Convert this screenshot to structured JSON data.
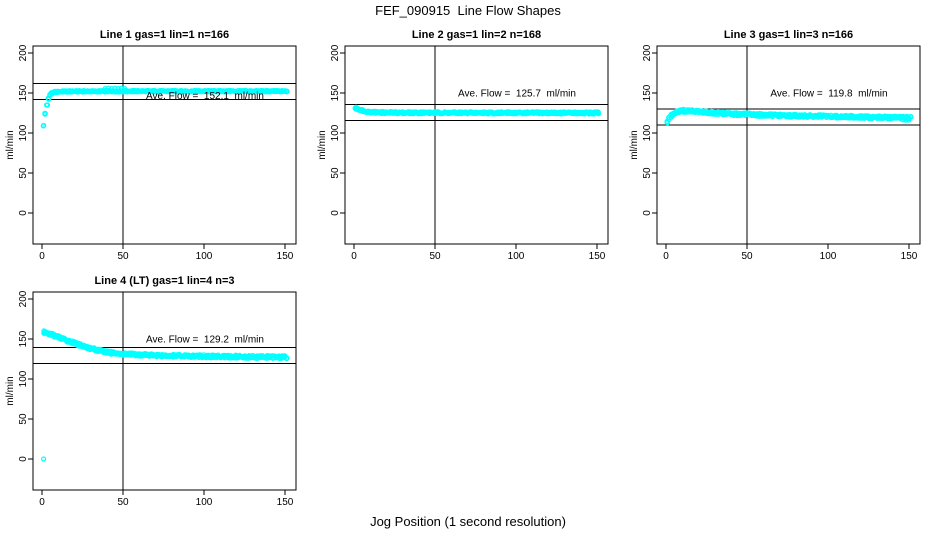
{
  "page": {
    "title": "FEF_090915  Line Flow Shapes",
    "xlabel": "Jog Position (1 second resolution)"
  },
  "colors": {
    "points": "#00FFFF",
    "axis": "#000000",
    "background": "#FFFFFF"
  },
  "chart_data": [
    {
      "type": "scatter",
      "title": "Line 1 gas=1 lin=1 n=166",
      "gas": 1,
      "lin": 1,
      "n": 166,
      "ave_flow": 152.1,
      "annotation": "Ave. Flow =  152.1  ml/min",
      "ylabel": "ml/min",
      "x_ticks": [
        0,
        50,
        100,
        150
      ],
      "y_ticks": [
        0,
        50,
        100,
        150,
        200
      ],
      "xlim": [
        -5,
        157
      ],
      "ylim": [
        -39,
        209
      ],
      "grid": false,
      "vline_x": 50,
      "hlines": [
        162.1,
        142.1
      ],
      "band_halfwidth": 0.9,
      "ann_y": 147,
      "profile": [
        [
          1,
          109
        ],
        [
          2,
          124
        ],
        [
          3,
          135
        ],
        [
          4,
          143
        ],
        [
          5,
          147.5
        ],
        [
          6,
          149.5
        ],
        [
          8,
          151.2
        ],
        [
          12,
          151.9
        ],
        [
          25,
          152.1
        ],
        [
          60,
          152.3
        ],
        [
          151,
          152.2
        ]
      ],
      "outliers": [
        [
          39,
          155.5
        ],
        [
          41,
          156
        ],
        [
          43,
          155.5
        ],
        [
          45,
          156
        ],
        [
          47,
          155.5
        ],
        [
          49,
          156
        ],
        [
          51,
          155.5
        ]
      ]
    },
    {
      "type": "scatter",
      "title": "Line 2 gas=1 lin=2 n=168",
      "gas": 1,
      "lin": 2,
      "n": 168,
      "ave_flow": 125.7,
      "annotation": "Ave. Flow =  125.7  ml/min",
      "ylabel": "ml/min",
      "x_ticks": [
        0,
        50,
        100,
        150
      ],
      "y_ticks": [
        0,
        50,
        100,
        150,
        200
      ],
      "xlim": [
        -5,
        157
      ],
      "ylim": [
        -39,
        209
      ],
      "grid": false,
      "vline_x": 50,
      "hlines": [
        135.7,
        115.7
      ],
      "band_halfwidth": 1.3,
      "ann_y": 150,
      "profile": [
        [
          1,
          131
        ],
        [
          2,
          130.2
        ],
        [
          4,
          129
        ],
        [
          6,
          127.8
        ],
        [
          9,
          126.6
        ],
        [
          13,
          125.9
        ],
        [
          20,
          125.5
        ],
        [
          40,
          125.4
        ],
        [
          80,
          125.3
        ],
        [
          151,
          125.1
        ]
      ],
      "outliers": []
    },
    {
      "type": "scatter",
      "title": "Line 3 gas=1 lin=3 n=166",
      "gas": 1,
      "lin": 3,
      "n": 166,
      "ave_flow": 119.8,
      "annotation": "Ave. Flow =  119.8  ml/min",
      "ylabel": "ml/min",
      "x_ticks": [
        0,
        50,
        100,
        150
      ],
      "y_ticks": [
        0,
        50,
        100,
        150,
        200
      ],
      "xlim": [
        -5,
        157
      ],
      "ylim": [
        -39,
        209
      ],
      "grid": false,
      "vline_x": 50,
      "hlines": [
        129.8,
        109.8
      ],
      "band_halfwidth": 1.8,
      "ann_y": 150,
      "profile": [
        [
          1,
          114
        ],
        [
          2,
          118
        ],
        [
          3,
          121.5
        ],
        [
          5,
          125
        ],
        [
          7,
          126.8
        ],
        [
          10,
          127.8
        ],
        [
          14,
          127.6
        ],
        [
          20,
          126.7
        ],
        [
          30,
          125.2
        ],
        [
          40,
          124
        ],
        [
          55,
          122.8
        ],
        [
          70,
          122
        ],
        [
          90,
          121.1
        ],
        [
          110,
          120.4
        ],
        [
          130,
          119.7
        ],
        [
          151,
          119.2
        ]
      ],
      "outliers": [
        [
          146,
          116.5
        ],
        [
          148,
          116
        ],
        [
          150,
          116.3
        ]
      ]
    },
    {
      "type": "scatter",
      "title": "Line 4 (LT) gas=1 lin=4 n=3",
      "gas": 1,
      "lin": 4,
      "n": 3,
      "ave_flow": 129.2,
      "annotation": "Ave. Flow =  129.2  ml/min",
      "ylabel": "ml/min",
      "x_ticks": [
        0,
        50,
        100,
        150
      ],
      "y_ticks": [
        0,
        50,
        100,
        150,
        200
      ],
      "xlim": [
        -5,
        157
      ],
      "ylim": [
        -39,
        209
      ],
      "grid": false,
      "vline_x": 50,
      "hlines": [
        139.2,
        119.2
      ],
      "band_halfwidth": 1.8,
      "ann_y": 150,
      "profile": [
        [
          1,
          158.5
        ],
        [
          3,
          157.5
        ],
        [
          5,
          156.2
        ],
        [
          7,
          154.8
        ],
        [
          9,
          153.3
        ],
        [
          12,
          151
        ],
        [
          15,
          148.5
        ],
        [
          18,
          146.3
        ],
        [
          21,
          144.2
        ],
        [
          24,
          142.2
        ],
        [
          27,
          140.3
        ],
        [
          30,
          138.5
        ],
        [
          33,
          136.9
        ],
        [
          36,
          135.4
        ],
        [
          39,
          134.1
        ],
        [
          43,
          132.9
        ],
        [
          47,
          132
        ],
        [
          52,
          131.2
        ],
        [
          60,
          130.4
        ],
        [
          70,
          129.7
        ],
        [
          80,
          129.2
        ],
        [
          90,
          128.8
        ],
        [
          105,
          128.3
        ],
        [
          125,
          127.8
        ],
        [
          151,
          127.2
        ]
      ],
      "outliers": [
        [
          1,
          0
        ]
      ]
    }
  ]
}
